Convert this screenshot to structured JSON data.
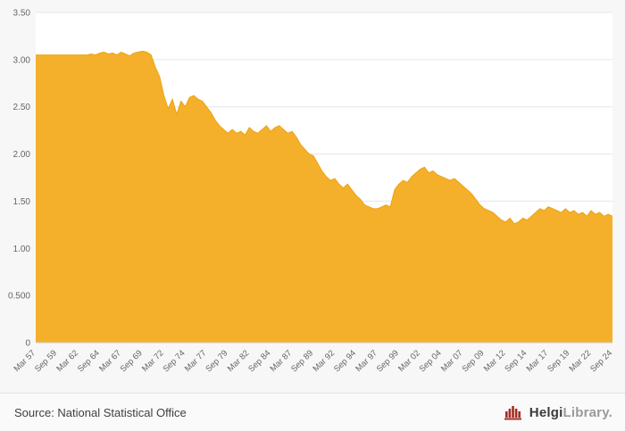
{
  "footer": {
    "source": "Source: National Statistical Office",
    "brand_bold": "Helgi",
    "brand_rest": "Library."
  },
  "brand_color": "#a22d24",
  "chart_data": {
    "type": "area",
    "title": "",
    "x_start": "Mar 57",
    "x_end": "Sep 24",
    "frequency": "semiannual",
    "x_tick_step": 5,
    "x_tick_labels": [
      "Mar 57",
      "Sep 59",
      "Mar 62",
      "Sep 64",
      "Mar 67",
      "Sep 69",
      "Mar 72",
      "Sep 74",
      "Mar 77",
      "Sep 79",
      "Mar 82",
      "Sep 84",
      "Mar 87",
      "Sep 89",
      "Mar 92",
      "Sep 94",
      "Mar 97",
      "Sep 99",
      "Mar 02",
      "Sep 04",
      "Mar 07",
      "Sep 09",
      "Mar 12",
      "Sep 14",
      "Mar 17",
      "Sep 19",
      "Mar 22",
      "Sep 24"
    ],
    "ylim": [
      0,
      3.5
    ],
    "ytick_values": [
      3.5,
      3.0,
      2.5,
      2.0,
      1.5,
      1.0,
      0.5,
      0
    ],
    "ytick_labels": [
      "3.50",
      "3.00",
      "2.50",
      "2.00",
      "1.50",
      "1.00",
      "0.500",
      "0"
    ],
    "grid": true,
    "legend": "none",
    "fill_color": "#f4b02a",
    "line_color": "#eda313",
    "values": [
      3.05,
      3.05,
      3.05,
      3.05,
      3.05,
      3.05,
      3.05,
      3.05,
      3.05,
      3.05,
      3.05,
      3.05,
      3.05,
      3.06,
      3.05,
      3.07,
      3.08,
      3.06,
      3.07,
      3.05,
      3.08,
      3.06,
      3.04,
      3.07,
      3.08,
      3.09,
      3.08,
      3.05,
      2.92,
      2.82,
      2.62,
      2.48,
      2.58,
      2.42,
      2.56,
      2.5,
      2.6,
      2.62,
      2.58,
      2.56,
      2.5,
      2.44,
      2.36,
      2.3,
      2.26,
      2.22,
      2.26,
      2.22,
      2.24,
      2.2,
      2.28,
      2.24,
      2.22,
      2.26,
      2.3,
      2.24,
      2.28,
      2.3,
      2.26,
      2.22,
      2.24,
      2.18,
      2.1,
      2.05,
      2.0,
      1.98,
      1.9,
      1.82,
      1.76,
      1.72,
      1.74,
      1.68,
      1.64,
      1.68,
      1.62,
      1.56,
      1.52,
      1.46,
      1.44,
      1.42,
      1.42,
      1.44,
      1.46,
      1.44,
      1.62,
      1.68,
      1.72,
      1.7,
      1.76,
      1.8,
      1.84,
      1.86,
      1.8,
      1.82,
      1.78,
      1.76,
      1.74,
      1.72,
      1.74,
      1.7,
      1.66,
      1.62,
      1.58,
      1.52,
      1.46,
      1.42,
      1.4,
      1.38,
      1.34,
      1.3,
      1.28,
      1.32,
      1.26,
      1.28,
      1.32,
      1.3,
      1.34,
      1.38,
      1.42,
      1.4,
      1.44,
      1.42,
      1.4,
      1.38,
      1.42,
      1.38,
      1.4,
      1.36,
      1.38,
      1.34,
      1.4,
      1.36,
      1.38,
      1.34,
      1.36,
      1.34
    ]
  }
}
